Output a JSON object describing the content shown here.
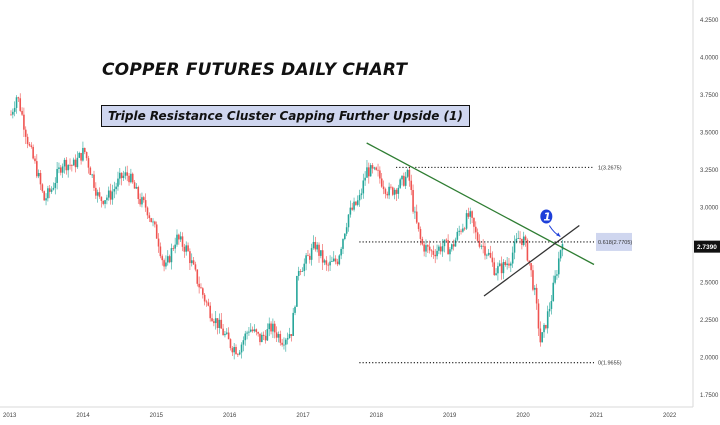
{
  "chart_data": {
    "type": "candlestick",
    "title": "COPPER FUTURES DAILY CHART",
    "subtitle": "Triple Resistance Cluster Capping Further Upside (1)",
    "x_ticks": [
      "2013",
      "2014",
      "2015",
      "2016",
      "2017",
      "2018",
      "2019",
      "2020",
      "2021",
      "2022"
    ],
    "y_ticks": [
      "1.7500",
      "2.0000",
      "2.2500",
      "2.5000",
      "2.7500",
      "3.0000",
      "3.2500",
      "3.5000",
      "3.7500",
      "4.0000",
      "4.2500"
    ],
    "ylim": [
      1.65,
      4.35
    ],
    "xlim": [
      2013.0,
      2022.6
    ],
    "current_price": "2.7390",
    "price_path": [
      [
        2013.0,
        3.62
      ],
      [
        2013.08,
        3.75
      ],
      [
        2013.12,
        3.68
      ],
      [
        2013.25,
        3.4
      ],
      [
        2013.35,
        3.25
      ],
      [
        2013.45,
        3.05
      ],
      [
        2013.55,
        3.12
      ],
      [
        2013.7,
        3.3
      ],
      [
        2013.85,
        3.28
      ],
      [
        2014.0,
        3.38
      ],
      [
        2014.1,
        3.22
      ],
      [
        2014.2,
        3.05
      ],
      [
        2014.35,
        3.08
      ],
      [
        2014.5,
        3.2
      ],
      [
        2014.6,
        3.22
      ],
      [
        2014.75,
        3.05
      ],
      [
        2014.85,
        3.0
      ],
      [
        2015.0,
        2.8
      ],
      [
        2015.1,
        2.58
      ],
      [
        2015.25,
        2.8
      ],
      [
        2015.4,
        2.72
      ],
      [
        2015.55,
        2.5
      ],
      [
        2015.7,
        2.32
      ],
      [
        2015.85,
        2.2
      ],
      [
        2016.0,
        2.08
      ],
      [
        2016.1,
        2.05
      ],
      [
        2016.25,
        2.2
      ],
      [
        2016.4,
        2.12
      ],
      [
        2016.55,
        2.2
      ],
      [
        2016.7,
        2.12
      ],
      [
        2016.83,
        2.18
      ],
      [
        2016.92,
        2.6
      ],
      [
        2017.0,
        2.62
      ],
      [
        2017.15,
        2.75
      ],
      [
        2017.3,
        2.6
      ],
      [
        2017.45,
        2.65
      ],
      [
        2017.6,
        2.95
      ],
      [
        2017.75,
        3.05
      ],
      [
        2017.85,
        3.25
      ],
      [
        2018.0,
        3.22
      ],
      [
        2018.15,
        3.1
      ],
      [
        2018.3,
        3.15
      ],
      [
        2018.42,
        3.22
      ],
      [
        2018.5,
        2.95
      ],
      [
        2018.6,
        2.75
      ],
      [
        2018.75,
        2.7
      ],
      [
        2018.9,
        2.75
      ],
      [
        2019.0,
        2.72
      ],
      [
        2019.12,
        2.85
      ],
      [
        2019.25,
        2.95
      ],
      [
        2019.35,
        2.8
      ],
      [
        2019.5,
        2.7
      ],
      [
        2019.6,
        2.58
      ],
      [
        2019.7,
        2.6
      ],
      [
        2019.8,
        2.65
      ],
      [
        2019.92,
        2.8
      ],
      [
        2020.0,
        2.78
      ],
      [
        2020.08,
        2.6
      ],
      [
        2020.15,
        2.4
      ],
      [
        2020.22,
        2.1
      ],
      [
        2020.27,
        2.18
      ],
      [
        2020.35,
        2.35
      ],
      [
        2020.45,
        2.6
      ],
      [
        2020.52,
        2.8
      ]
    ],
    "annotations": [
      {
        "type": "fib-level",
        "label": "1(3.2675)",
        "value": 3.2675,
        "x_start": 2018.25,
        "x_end": 2020.95
      },
      {
        "type": "fib-level",
        "label": "0.618(2.7705)",
        "value": 2.7705,
        "x_start": 2017.75,
        "x_end": 2020.95
      },
      {
        "type": "fib-level",
        "label": "0(1.9655)",
        "value": 1.9655,
        "x_start": 2017.75,
        "x_end": 2020.95
      },
      {
        "type": "trendline",
        "color": "#2e7d32",
        "points": [
          [
            2017.85,
            3.43
          ],
          [
            2020.95,
            2.62
          ]
        ]
      },
      {
        "type": "trendline",
        "color": "#333333",
        "points": [
          [
            2019.45,
            2.41
          ],
          [
            2020.75,
            2.88
          ]
        ]
      },
      {
        "type": "marker",
        "label": "1",
        "x": 2020.3,
        "y": 2.94
      }
    ],
    "colors": {
      "up": "#26a69a",
      "down": "#ef5350",
      "resistance": "#2e7d32",
      "support": "#333333",
      "fib_highlight": "#cfd6ef",
      "price_tag": "#111111",
      "marker": "#1e3fd9"
    }
  }
}
